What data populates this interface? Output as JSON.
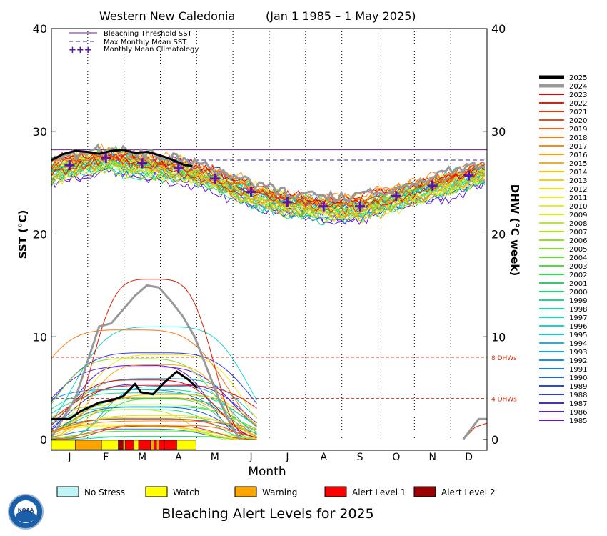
{
  "chart_data": {
    "type": "line",
    "title_left": "Western New Caledonia",
    "title_right": "(Jan 1 1985 – 1 May 2025)",
    "ylabel_left": "SST (°C)",
    "ylabel_right": "DHW (°C week)",
    "xlabel": "Month",
    "ylim": [
      0,
      40
    ],
    "yticks": [
      0,
      10,
      20,
      30,
      40
    ],
    "months": [
      "J",
      "F",
      "M",
      "A",
      "M",
      "J",
      "J",
      "A",
      "S",
      "O",
      "N",
      "D"
    ],
    "legend_top": [
      {
        "label": "Bleaching Threshold SST",
        "color": "#6a1b9a",
        "style": "solid"
      },
      {
        "label": "Max Monthly Mean SST",
        "color": "#3a1ea0",
        "style": "dashed"
      },
      {
        "label": "Monthly Mean Climatology",
        "color": "#5a12b0",
        "style": "plus"
      }
    ],
    "bleaching_threshold_sst": 28.2,
    "max_monthly_mean_sst": 27.2,
    "monthly_mean_climatology": [
      26.7,
      27.4,
      26.9,
      26.4,
      25.4,
      24.1,
      23.1,
      22.7,
      22.7,
      23.7,
      24.7,
      25.7
    ],
    "dhw_lines": [
      {
        "value": 8,
        "label": "8 DHWs"
      },
      {
        "value": 4,
        "label": "4 DHWs"
      }
    ],
    "years": [
      "2025",
      "2024",
      "2023",
      "2022",
      "2021",
      "2020",
      "2019",
      "2018",
      "2017",
      "2016",
      "2015",
      "2014",
      "2013",
      "2012",
      "2011",
      "2010",
      "2009",
      "2008",
      "2007",
      "2006",
      "2005",
      "2004",
      "2003",
      "2002",
      "2001",
      "2000",
      "1999",
      "1998",
      "1997",
      "1996",
      "1995",
      "1994",
      "1993",
      "1992",
      "1991",
      "1990",
      "1989",
      "1988",
      "1987",
      "1986",
      "1985"
    ],
    "series_2025_sst": {
      "x_day": [
        0,
        10,
        20,
        30,
        40,
        50,
        60,
        70,
        80,
        90,
        100,
        110,
        118
      ],
      "y": [
        27.2,
        27.8,
        28.1,
        28.0,
        27.8,
        28.1,
        28.2,
        27.9,
        28.0,
        27.7,
        27.3,
        26.8,
        26.6
      ]
    },
    "series_2025_dhw": {
      "x_day": [
        0,
        15,
        25,
        40,
        50,
        60,
        70,
        75,
        85,
        95,
        105,
        115,
        122
      ],
      "y": [
        2.0,
        2.0,
        2.8,
        3.6,
        3.8,
        4.2,
        5.4,
        4.6,
        4.4,
        5.6,
        6.6,
        5.8,
        5.0
      ]
    },
    "series_2024_dhw": {
      "x_day": [
        0,
        20,
        40,
        50,
        70,
        80,
        90,
        100,
        110,
        120,
        130,
        140,
        150,
        158
      ],
      "y": [
        0.2,
        4.0,
        11.0,
        11.3,
        14.0,
        15.0,
        14.8,
        13.5,
        12.0,
        10.0,
        7.0,
        4.0,
        1.5,
        0.0
      ]
    },
    "alert_legend": [
      {
        "label": "No Stress",
        "color": "#bdf5f5"
      },
      {
        "label": "Watch",
        "color": "#ffff00"
      },
      {
        "label": "Warning",
        "color": "#ffa500"
      },
      {
        "label": "Alert Level 1",
        "color": "#ff0000"
      },
      {
        "label": "Alert Level 2",
        "color": "#990000"
      }
    ],
    "alert_bar_2025": [
      {
        "from_day": 0,
        "to_day": 20,
        "level": "Watch"
      },
      {
        "from_day": 20,
        "to_day": 42,
        "level": "Warning"
      },
      {
        "from_day": 42,
        "to_day": 56,
        "level": "Watch"
      },
      {
        "from_day": 56,
        "to_day": 60,
        "level": "Alert Level 2"
      },
      {
        "from_day": 60,
        "to_day": 62,
        "level": "Warning"
      },
      {
        "from_day": 62,
        "to_day": 69,
        "level": "Alert Level 1"
      },
      {
        "from_day": 69,
        "to_day": 73,
        "level": "Watch"
      },
      {
        "from_day": 73,
        "to_day": 83,
        "level": "Alert Level 1"
      },
      {
        "from_day": 83,
        "to_day": 86,
        "level": "Warning"
      },
      {
        "from_day": 86,
        "to_day": 88,
        "level": "Alert Level 1"
      },
      {
        "from_day": 88,
        "to_day": 90,
        "level": "Warning"
      },
      {
        "from_day": 90,
        "to_day": 95,
        "level": "Alert Level 1"
      },
      {
        "from_day": 95,
        "to_day": 105,
        "level": "Alert Level 1"
      },
      {
        "from_day": 105,
        "to_day": 121,
        "level": "Watch"
      }
    ],
    "bottom_title": "Bleaching Alert Levels for 2025",
    "logo_text": "NOAA"
  }
}
